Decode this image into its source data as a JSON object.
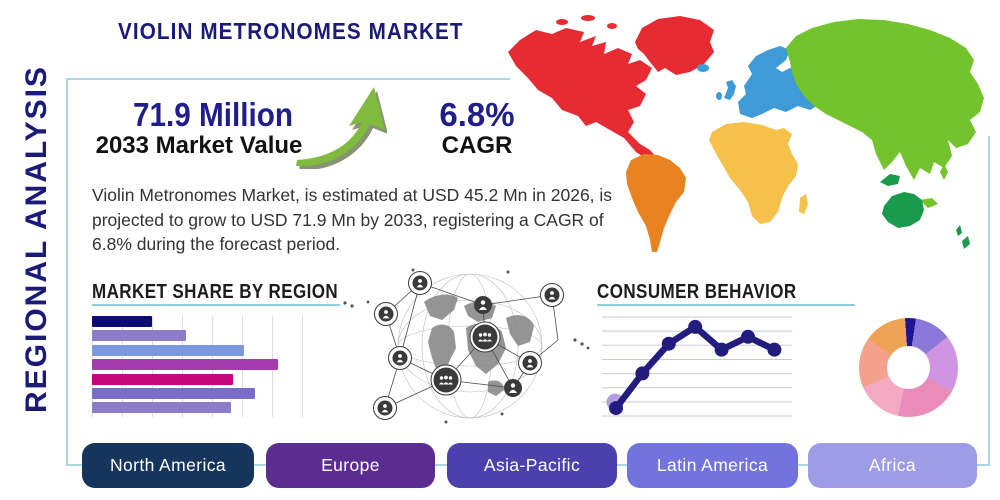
{
  "header": {
    "title": "VIOLIN METRONOMES MARKET"
  },
  "sidebar": {
    "label": "REGIONAL ANALYSIS"
  },
  "stats": {
    "market_value": "71.9 Million",
    "market_value_caption": "2033 Market Value",
    "cagr_value": "6.8%",
    "cagr_caption": "CAGR"
  },
  "description": "Violin Metronomes Market, is estimated at USD 45.2 Mn in 2026, is projected to grow to USD 71.9 Mn by 2033, registering a CAGR of 6.8% during the forecast period.",
  "chart_data": [
    {
      "type": "bar",
      "title": "MARKET SHARE BY REGION",
      "orientation": "horizontal",
      "values": [
        28,
        44,
        71,
        87,
        66,
        76,
        65
      ],
      "xlim": [
        0,
        100
      ],
      "grid": true,
      "bar_colors": [
        "#0b0b72",
        "#8d7cc9",
        "#7d97dd",
        "#a63bb0",
        "#c4087c",
        "#7b6cc9",
        "#8d7cc9"
      ],
      "note": "no axis tick labels or category labels are shown in the image"
    },
    {
      "type": "line",
      "title": "CONSUMER BEHAVIOR",
      "x": [
        1,
        2,
        3,
        4,
        5,
        6,
        7
      ],
      "values": [
        8,
        43,
        73,
        90,
        67,
        80,
        67
      ],
      "ylim": [
        0,
        100
      ],
      "grid": true,
      "line_color": "#221c7e",
      "first_point_halo_color": "#b39fe0",
      "note": "no axis tick labels are shown in the image"
    },
    {
      "type": "pie",
      "donut": true,
      "start_angle_deg": -4,
      "segments": [
        {
          "label": "segment-1",
          "value": 3.5,
          "color": "#1c1690"
        },
        {
          "label": "segment-2",
          "value": 12,
          "color": "#8b79d9"
        },
        {
          "label": "segment-3",
          "value": 18.5,
          "color": "#cf95e2"
        },
        {
          "label": "segment-4",
          "value": 20.5,
          "color": "#ea8cba"
        },
        {
          "label": "segment-5",
          "value": 15,
          "color": "#f3a9c2"
        },
        {
          "label": "segment-6",
          "value": 16.5,
          "color": "#f4a18e"
        },
        {
          "label": "segment-7",
          "value": 14,
          "color": "#eda353"
        }
      ],
      "note": "no labels or legend shown for the donut"
    }
  ],
  "map_regions": [
    {
      "name": "North America",
      "color": "#e62b33"
    },
    {
      "name": "South America",
      "color": "#e8831f"
    },
    {
      "name": "Europe",
      "color": "#3f9bd7"
    },
    {
      "name": "Africa",
      "color": "#f5c14a"
    },
    {
      "name": "Asia",
      "color": "#72c32c"
    },
    {
      "name": "Oceania",
      "color": "#199a4c"
    }
  ],
  "region_buttons": [
    {
      "label": "North America",
      "color": "#16355c"
    },
    {
      "label": "Europe",
      "color": "#5c2d91"
    },
    {
      "label": "Asia-Pacific",
      "color": "#4b41ad"
    },
    {
      "label": "Latin America",
      "color": "#7273dc"
    },
    {
      "label": "Africa",
      "color": "#9e9ce4"
    }
  ],
  "theme": {
    "navy_text": "#1a1a78",
    "panel_border": "#a9d6e8",
    "title_underline": "#8ccde2",
    "arrow_green": "#80ba3e"
  }
}
